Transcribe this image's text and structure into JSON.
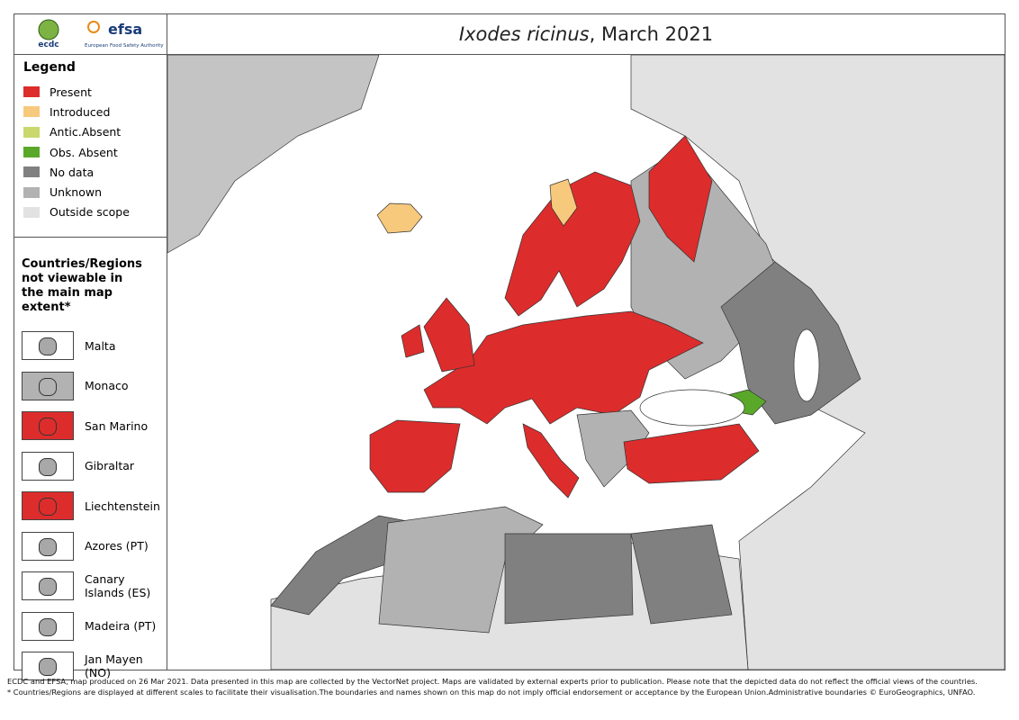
{
  "header": {
    "title_italic": "Ixodes ricinus",
    "title_rest": ", March 2021",
    "logo_ecdc": "ecdc",
    "logo_efsa": "efsa",
    "logo_efsa_sub": "European Food Safety Authority"
  },
  "legend": {
    "title": "Legend",
    "items": [
      {
        "label": "Present",
        "color": "#dd2c2c"
      },
      {
        "label": "Introduced",
        "color": "#f7c97c"
      },
      {
        "label": "Antic.Absent",
        "color": "#c8d86c"
      },
      {
        "label": "Obs. Absent",
        "color": "#5aa829"
      },
      {
        "label": "No data",
        "color": "#808080"
      },
      {
        "label": "Unknown",
        "color": "#b2b2b2"
      },
      {
        "label": "Outside scope",
        "color": "#e2e2e2"
      }
    ]
  },
  "insets": {
    "title": "Countries/Regions not viewable in the main map extent*",
    "items": [
      {
        "label": "Malta",
        "color": "#ffffff"
      },
      {
        "label": "Monaco",
        "color": "#b2b2b2"
      },
      {
        "label": "San Marino",
        "color": "#dd2c2c"
      },
      {
        "label": "Gibraltar",
        "color": "#ffffff"
      },
      {
        "label": "Liechtenstein",
        "color": "#dd2c2c"
      },
      {
        "label": "Azores (PT)",
        "color": "#ffffff"
      },
      {
        "label": "Canary Islands (ES)",
        "color": "#ffffff"
      },
      {
        "label": "Madeira (PT)",
        "color": "#ffffff"
      },
      {
        "label": "Jan Mayen (NO)",
        "color": "#ffffff"
      }
    ]
  },
  "footer": [
    "ECDC and EFSA, map produced on 26 Mar 2021. Data presented in this map are collected by the VectorNet project. Maps are validated by external experts prior to publication. Please note that the depicted data do not reflect the official views of the countries.",
    "* Countries/Regions are displayed at different scales to facilitate their visualisation.The boundaries and names shown on this map do not imply official endorsement or acceptance by the European Union.Administrative boundaries © EuroGeographics, UNFAO."
  ]
}
